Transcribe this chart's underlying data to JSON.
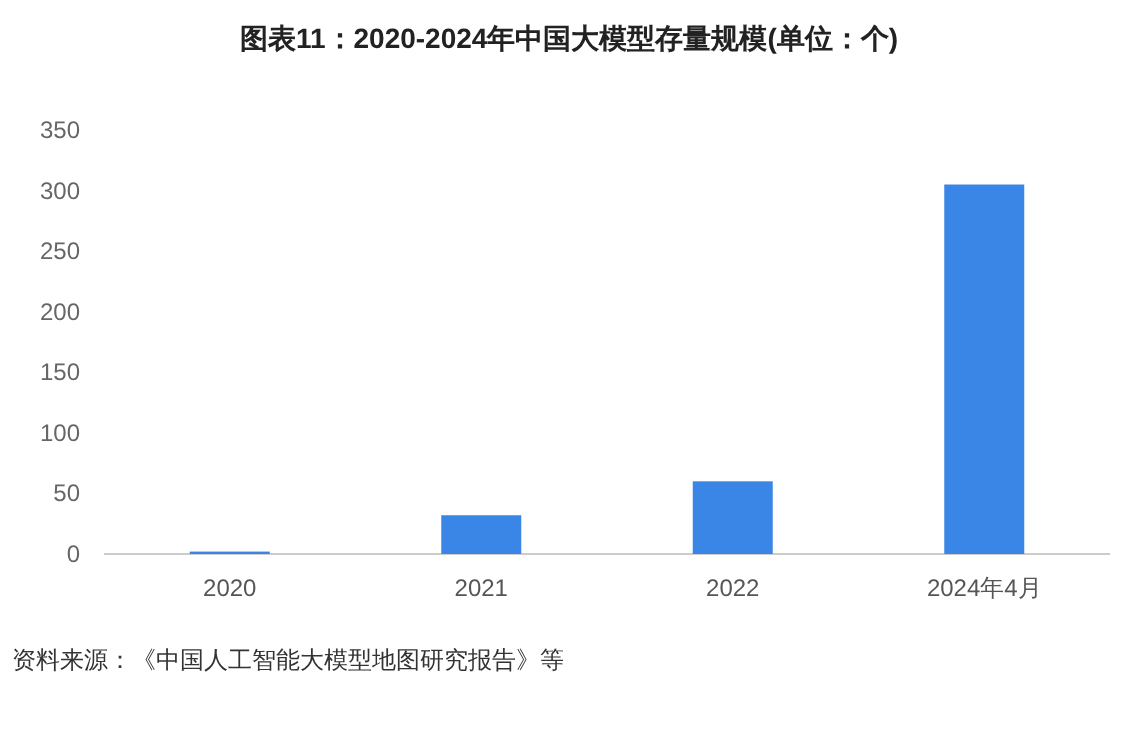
{
  "chart_data": {
    "type": "bar",
    "title": "图表11：2020-2024年中国大模型存量规模(单位：个)",
    "categories": [
      "2020",
      "2021",
      "2022",
      "2024年4月"
    ],
    "values": [
      2,
      32,
      60,
      305
    ],
    "color": "#3a86e6",
    "ylim": [
      0,
      350
    ],
    "yticks": [
      0,
      50,
      100,
      150,
      200,
      250,
      300,
      350
    ],
    "grid": false,
    "annotations": [
      "资料来源：《中国人工智能大模型地图研究报告》等"
    ]
  }
}
